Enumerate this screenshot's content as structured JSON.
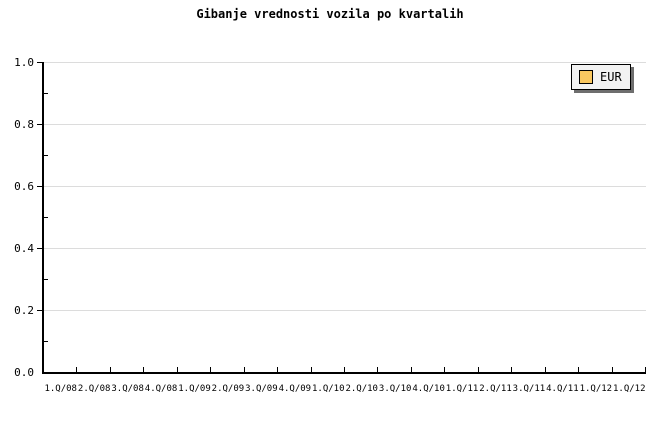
{
  "title": "Gibanje vrednosti vozila po kvartalih",
  "chart_data": {
    "type": "line",
    "title": "Gibanje vrednosti vozila po kvartalih",
    "categories": [
      "1.Q/08",
      "2.Q/08",
      "3.Q/08",
      "4.Q/08",
      "1.Q/09",
      "2.Q/09",
      "3.Q/09",
      "4.Q/09",
      "1.Q/10",
      "2.Q/10",
      "3.Q/10",
      "4.Q/10",
      "1.Q/11",
      "2.Q/11",
      "3.Q/11",
      "4.Q/11",
      "1.Q/12",
      "1.Q/12"
    ],
    "series": [
      {
        "name": "EUR",
        "values": []
      }
    ],
    "xlabel": "",
    "ylabel": "",
    "ylim": [
      0.0,
      1.0
    ],
    "y_major_tick_labels": [
      "1.0",
      "0.8",
      "0.6",
      "0.4",
      "0.2",
      "0.0"
    ],
    "y_major_step": 0.2,
    "y_minor_step": 0.1,
    "grid": "horizontal-major",
    "legend_position": "top-right"
  },
  "legend": {
    "items": [
      {
        "label": "EUR",
        "color": "#FAC860"
      }
    ]
  },
  "colors": {
    "background": "#FFFFFF",
    "axis": "#000000",
    "grid": "#DCDCDC",
    "text": "#000000",
    "legend_background": "#F2F2F2",
    "legend_border": "#000000",
    "legend_shadow": "#6E6E6E",
    "swatch_border": "#000000"
  }
}
